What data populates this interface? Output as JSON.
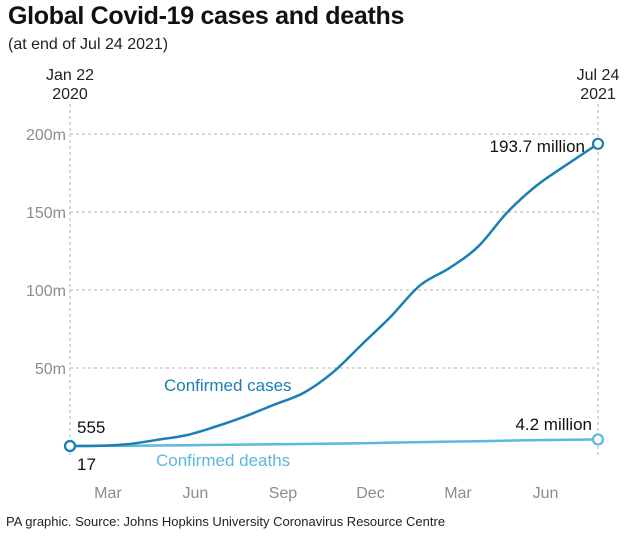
{
  "title": "Global Covid-19 cases and deaths",
  "subtitle": "(at end of Jul 24 2021)",
  "source": "PA graphic. Source: Johns Hopkins University Coronavirus Resource Centre",
  "colors": {
    "cases": "#1a7fb3",
    "deaths": "#5bb8de",
    "grid": "#b3b3b3",
    "axis_text": "#8c8c8c",
    "text": "#111111"
  },
  "chart_data": {
    "type": "line",
    "title": "Global Covid-19 cases and deaths",
    "subtitle": "(at end of Jul 24 2021)",
    "x_unit": "months since Jan 22 2020",
    "xlim": [
      0,
      18.1
    ],
    "ylim": [
      0,
      200
    ],
    "ylabel": "",
    "xlabel": "",
    "y_ticks": [
      {
        "value": 50,
        "label": "50m"
      },
      {
        "value": 100,
        "label": "100m"
      },
      {
        "value": 150,
        "label": "150m"
      },
      {
        "value": 200,
        "label": "200m"
      }
    ],
    "x_ticks": [
      {
        "value": 1.3,
        "label": "Mar"
      },
      {
        "value": 4.3,
        "label": "Jun"
      },
      {
        "value": 7.3,
        "label": "Sep"
      },
      {
        "value": 10.3,
        "label": "Dec"
      },
      {
        "value": 13.3,
        "label": "Mar"
      },
      {
        "value": 16.3,
        "label": "Jun"
      }
    ],
    "start_label": {
      "line1": "Jan 22",
      "line2": "2020"
    },
    "end_label": {
      "line1": "Jul 24",
      "line2": "2021"
    },
    "series": [
      {
        "name": "Confirmed cases",
        "label": "Confirmed cases",
        "x": [
          0,
          1,
          2,
          3,
          4,
          5,
          6,
          7,
          8,
          9,
          10,
          11,
          12,
          13,
          14,
          15,
          16,
          17,
          18.1
        ],
        "values": [
          0.0006,
          0.1,
          1.2,
          4,
          7,
          12.5,
          19,
          26.5,
          34,
          47,
          65,
          83,
          103,
          114,
          128,
          150,
          167,
          180,
          193.7
        ],
        "start_value_label": "555",
        "end_value_label": "193.7 million"
      },
      {
        "name": "Confirmed deaths",
        "label": "Confirmed deaths",
        "x": [
          0,
          2,
          4,
          6,
          8,
          10,
          12,
          14,
          16,
          18.1
        ],
        "values": [
          2e-05,
          0.2,
          0.5,
          0.9,
          1.3,
          1.8,
          2.5,
          3.1,
          3.8,
          4.2
        ],
        "start_value_label": "17",
        "end_value_label": "4.2 million"
      }
    ]
  }
}
